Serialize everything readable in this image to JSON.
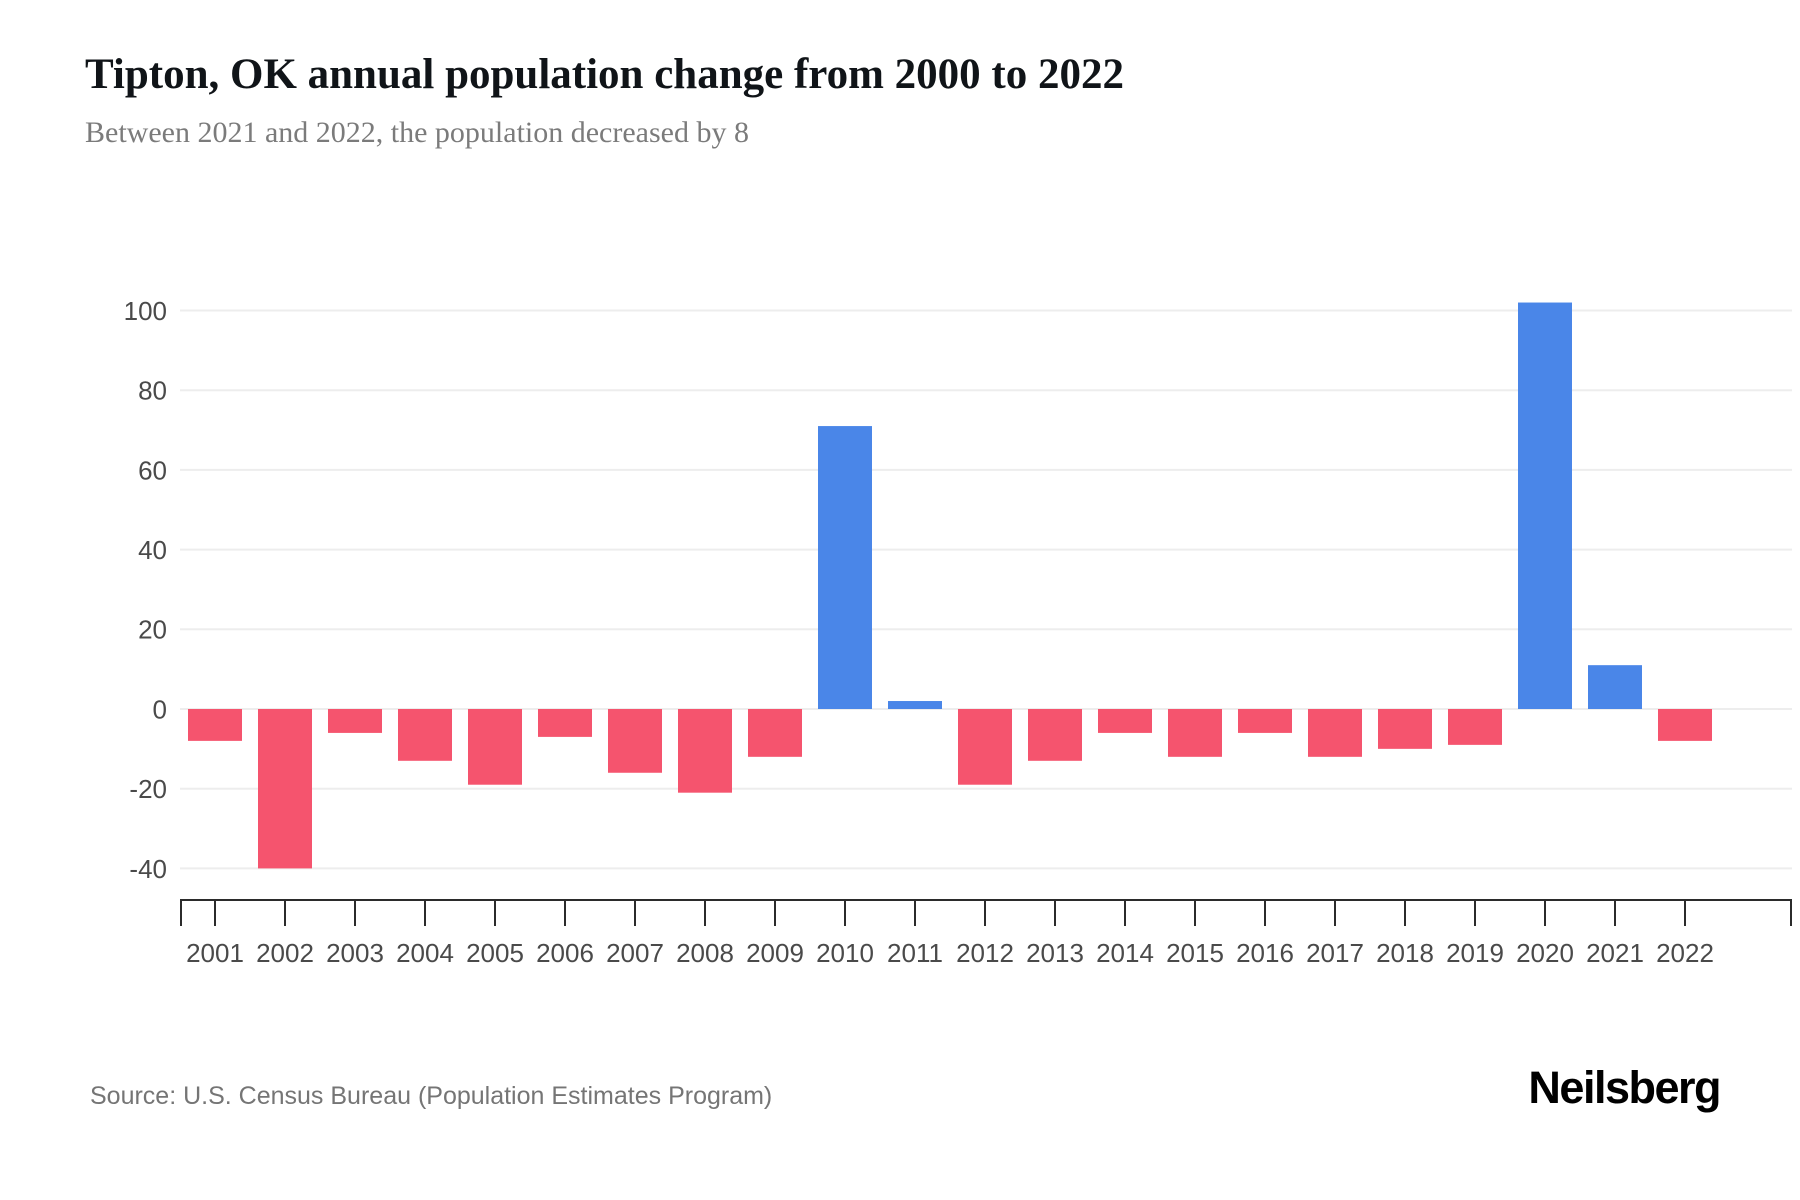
{
  "header": {
    "title": "Tipton, OK annual population change from 2000 to 2022",
    "subtitle": "Between 2021 and 2022, the population decreased by 8"
  },
  "chart_data": {
    "type": "bar",
    "title": "Tipton, OK annual population change from 2000 to 2022",
    "subtitle": "Between 2021 and 2022, the population decreased by 8",
    "categories": [
      "2001",
      "2002",
      "2003",
      "2004",
      "2005",
      "2006",
      "2007",
      "2008",
      "2009",
      "2010",
      "2011",
      "2012",
      "2013",
      "2014",
      "2015",
      "2016",
      "2017",
      "2018",
      "2019",
      "2020",
      "2021",
      "2022"
    ],
    "values": [
      -8,
      -40,
      -6,
      -13,
      -19,
      -7,
      -16,
      -21,
      -12,
      71,
      2,
      -19,
      -13,
      -6,
      -12,
      -6,
      -12,
      -10,
      -9,
      102,
      11,
      -8
    ],
    "xlabel": "",
    "ylabel": "",
    "yticks": [
      100,
      80,
      60,
      40,
      20,
      0,
      -20,
      -40
    ],
    "ylim": [
      -48,
      110
    ],
    "grid": true,
    "legend": "none",
    "colors": {
      "positive": "#4a86e8",
      "negative": "#f5546e",
      "gridline": "#ededed",
      "axis_line": "#2b2b2b",
      "tick_label": "#4a4a4a"
    }
  },
  "footer": {
    "source": "Source: U.S. Census Bureau (Population Estimates Program)",
    "logo": "Neilsberg"
  }
}
